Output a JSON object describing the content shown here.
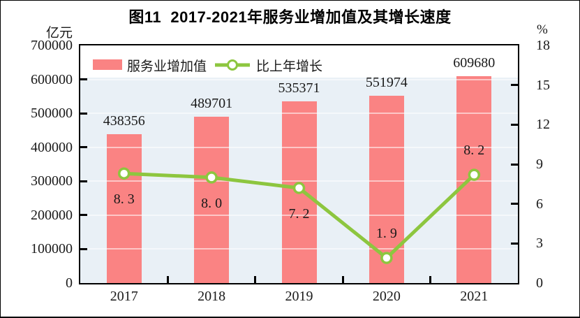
{
  "title": "图11  2017-2021年服务业增加值及其增长速度",
  "legend": {
    "bar_label": "服务业增加值",
    "line_label": "比上年增长"
  },
  "chart_data": {
    "type": "bar",
    "title": "图11  2017-2021年服务业增加值及其增长速度",
    "categories": [
      "2017",
      "2018",
      "2019",
      "2020",
      "2021"
    ],
    "series": [
      {
        "name": "服务业增加值",
        "chart_type": "bar",
        "axis": "left",
        "unit": "亿元",
        "values": [
          438356,
          489701,
          535371,
          551974,
          609680
        ],
        "labels": [
          "438356",
          "489701",
          "535371",
          "551974",
          "609680"
        ]
      },
      {
        "name": "比上年增长",
        "chart_type": "line",
        "axis": "right",
        "unit": "%",
        "values": [
          8.3,
          8.0,
          7.2,
          1.9,
          8.2
        ],
        "labels": [
          "8. 3",
          "8. 0",
          "7. 2",
          "1. 9",
          "8. 2"
        ],
        "label_side": [
          "below",
          "below",
          "below",
          "above",
          "above"
        ]
      }
    ],
    "left_axis": {
      "unit": "亿元",
      "min": 0,
      "max": 700000,
      "step": 100000,
      "tick_labels": [
        "0",
        "100000",
        "200000",
        "300000",
        "400000",
        "500000",
        "600000",
        "700000"
      ]
    },
    "right_axis": {
      "unit": "%",
      "min": 0,
      "max": 18,
      "step": 3,
      "tick_labels": [
        "0",
        "3",
        "6",
        "9",
        "12",
        "15",
        "18"
      ]
    },
    "grid": {
      "horizontal": true,
      "vertical": false
    },
    "legend_position": "top-left-inside",
    "colors": {
      "bar": "#fa8383",
      "line": "#8dc63f",
      "marker_fill": "#ffffff",
      "plot_bg": "#e9f0f6",
      "grid_line": "#ffffff",
      "axis_border": "#000000",
      "legend_bg": "#ffffff",
      "text": "#1a1a1a"
    }
  }
}
